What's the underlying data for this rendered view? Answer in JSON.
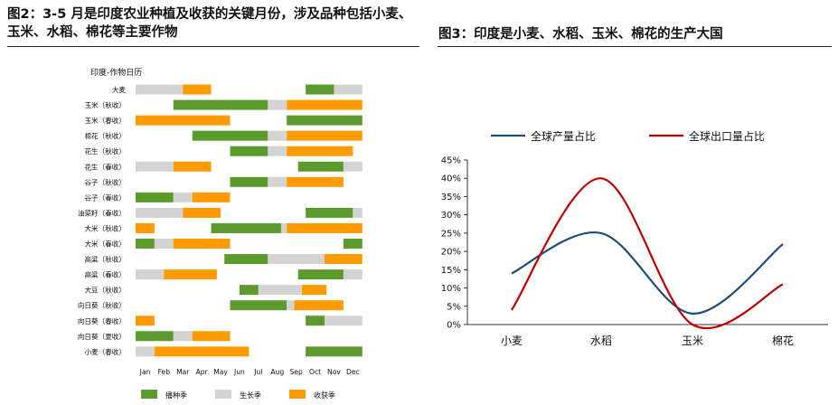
{
  "left_figure": {
    "title": "图2：3-5 月是印度农业种植及收获的关键月份，涉及品种包括小麦、玉米、水稻、棉花等主要作物"
  },
  "right_figure": {
    "title": "图3：印度是小麦、水稻、玉米、棉花的生产大国"
  },
  "colors": {
    "sowing": "#5b9a2c",
    "growing": "#d3d3d3",
    "harvest": "#ff9a00",
    "production": "#1f4e79",
    "export": "#c00000"
  },
  "chart_data": [
    {
      "type": "gantt",
      "title": "印度-作物日历",
      "months": [
        "Jan",
        "Feb",
        "Mar",
        "Apr",
        "May",
        "Jun",
        "Jul",
        "Aug",
        "Sep",
        "Oct",
        "Nov",
        "Dec"
      ],
      "legend": [
        "播种季",
        "生长季",
        "收获季"
      ],
      "rows": [
        {
          "label": "大麦",
          "segments": [
            [
              "growing",
              0,
              2.5
            ],
            [
              "harvest",
              2.5,
              4
            ],
            [
              "sowing",
              9,
              10.5
            ],
            [
              "growing",
              10.5,
              12
            ]
          ]
        },
        {
          "label": "玉米（秋收）",
          "segments": [
            [
              "sowing",
              2,
              7
            ],
            [
              "growing",
              7,
              8
            ],
            [
              "harvest",
              8,
              12
            ]
          ]
        },
        {
          "label": "玉米（春收）",
          "segments": [
            [
              "harvest",
              0,
              5
            ],
            [
              "sowing",
              8,
              12
            ]
          ]
        },
        {
          "label": "棉花（秋收）",
          "segments": [
            [
              "sowing",
              3,
              7
            ],
            [
              "growing",
              7,
              8
            ],
            [
              "harvest",
              8,
              12
            ]
          ]
        },
        {
          "label": "花生（秋收）",
          "segments": [
            [
              "sowing",
              5,
              7
            ],
            [
              "growing",
              7,
              8
            ],
            [
              "harvest",
              8,
              11.5
            ]
          ]
        },
        {
          "label": "花生（春收）",
          "segments": [
            [
              "growing",
              0,
              2
            ],
            [
              "harvest",
              2,
              4
            ],
            [
              "sowing",
              8.6,
              11
            ],
            [
              "growing",
              11,
              12
            ]
          ]
        },
        {
          "label": "谷子（秋收）",
          "segments": [
            [
              "sowing",
              5,
              7
            ],
            [
              "growing",
              7,
              8
            ],
            [
              "harvest",
              8,
              11
            ]
          ]
        },
        {
          "label": "谷子（春收）",
          "segments": [
            [
              "sowing",
              0,
              2
            ],
            [
              "growing",
              2,
              3
            ],
            [
              "harvest",
              3,
              5
            ]
          ]
        },
        {
          "label": "油菜籽（春收）",
          "segments": [
            [
              "growing",
              0,
              2.5
            ],
            [
              "harvest",
              2.5,
              4.5
            ],
            [
              "sowing",
              9,
              11.5
            ],
            [
              "growing",
              11.5,
              12
            ]
          ]
        },
        {
          "label": "大米（秋收）",
          "segments": [
            [
              "harvest",
              0,
              1
            ],
            [
              "sowing",
              4,
              7.7
            ],
            [
              "growing",
              7.7,
              8
            ],
            [
              "harvest",
              8,
              12
            ]
          ]
        },
        {
          "label": "大米（春收）",
          "segments": [
            [
              "sowing",
              0,
              1
            ],
            [
              "growing",
              1,
              2
            ],
            [
              "harvest",
              2,
              5
            ],
            [
              "sowing",
              11,
              12
            ]
          ]
        },
        {
          "label": "高粱（秋收）",
          "segments": [
            [
              "sowing",
              4.7,
              7
            ],
            [
              "growing",
              7,
              10
            ],
            [
              "harvest",
              10,
              12
            ]
          ]
        },
        {
          "label": "高粱（春收）",
          "segments": [
            [
              "growing",
              0,
              1.5
            ],
            [
              "harvest",
              1.5,
              4.3
            ],
            [
              "sowing",
              8.6,
              11
            ],
            [
              "growing",
              11,
              12
            ]
          ]
        },
        {
          "label": "大豆（秋收）",
          "segments": [
            [
              "sowing",
              5.5,
              6.5
            ],
            [
              "growing",
              6.5,
              8.8
            ],
            [
              "harvest",
              8.8,
              10.1
            ]
          ]
        },
        {
          "label": "向日葵（秋收）",
          "segments": [
            [
              "sowing",
              5,
              8
            ],
            [
              "growing",
              8,
              8.4
            ],
            [
              "harvest",
              8.4,
              11
            ]
          ]
        },
        {
          "label": "向日葵（春收）",
          "segments": [
            [
              "harvest",
              0,
              1
            ],
            [
              "sowing",
              9,
              10
            ],
            [
              "growing",
              10,
              12
            ]
          ]
        },
        {
          "label": "向日葵（夏收）",
          "segments": [
            [
              "sowing",
              0,
              2
            ],
            [
              "growing",
              2,
              3
            ],
            [
              "harvest",
              3,
              5
            ]
          ]
        },
        {
          "label": "小麦（春收）",
          "segments": [
            [
              "growing",
              0,
              1
            ],
            [
              "harvest",
              1,
              6
            ],
            [
              "sowing",
              9,
              12
            ]
          ]
        }
      ]
    },
    {
      "type": "line",
      "categories": [
        "小麦",
        "水稻",
        "玉米",
        "棉花"
      ],
      "series": [
        {
          "name": "全球产量占比",
          "values": [
            14,
            25,
            3,
            22
          ]
        },
        {
          "name": "全球出口量占比",
          "values": [
            4,
            40,
            0,
            11
          ]
        }
      ],
      "ylim": [
        0,
        45
      ],
      "yticks": [
        "0%",
        "5%",
        "10%",
        "15%",
        "20%",
        "25%",
        "30%",
        "35%",
        "40%",
        "45%"
      ],
      "legend_position": "top",
      "grid": false
    }
  ]
}
